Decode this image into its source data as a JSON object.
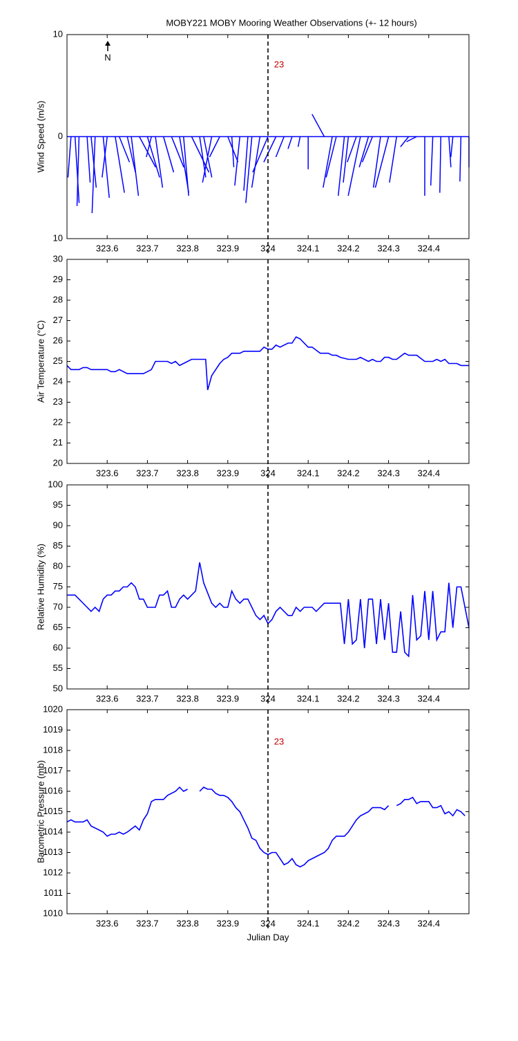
{
  "chart_data": [
    {
      "type": "quiver",
      "title": "MOBY221 MOBY Mooring Weather Observations (+- 12 hours)",
      "ylabel": "Wind Speed (m/s)",
      "x": [
        323.51,
        323.52,
        323.53,
        323.55,
        323.56,
        323.57,
        323.59,
        323.6,
        323.62,
        323.63,
        323.65,
        323.66,
        323.68,
        323.7,
        323.71,
        323.72,
        323.74,
        323.76,
        323.78,
        323.79,
        323.81,
        323.83,
        323.84,
        323.86,
        323.88,
        323.9,
        323.91,
        323.93,
        323.95,
        323.96,
        323.98,
        324.0,
        324.02,
        324.04,
        324.06,
        324.08,
        324.1,
        324.14,
        324.16,
        324.17,
        324.19,
        324.2,
        324.22,
        324.23,
        324.25,
        324.26,
        324.28,
        324.3,
        324.32,
        324.35,
        324.37,
        324.39,
        324.41,
        324.43,
        324.45,
        324.46,
        324.48,
        324.5
      ],
      "u": [
        -0.3,
        0.4,
        -0.2,
        0.3,
        0.5,
        -0.3,
        0.6,
        -0.5,
        0.9,
        1.0,
        0.8,
        0.7,
        1.6,
        1.2,
        -0.5,
        0.7,
        1.0,
        1.2,
        0.9,
        0.5,
        1.7,
        0.6,
        0.8,
        -0.9,
        -1.0,
        1.0,
        0.2,
        -0.5,
        -0.4,
        -0.6,
        -0.8,
        -1.5,
        -1.2,
        -0.8,
        -0.4,
        -0.2,
        0,
        -1.2,
        -0.9,
        -1.0,
        -0.6,
        -0.5,
        -0.9,
        -1.2,
        -0.9,
        -1.0,
        -0.7,
        -1.3,
        -0.7,
        -0.8,
        -1.0,
        0,
        -0.2,
        -0.1,
        0.2,
        -0.2,
        -0.1,
        0
      ],
      "v": [
        -4,
        -6.5,
        -6.8,
        -4.5,
        -5.0,
        -7.5,
        -6.0,
        -4.0,
        -5.5,
        -2.5,
        -3.5,
        -5.8,
        -3.0,
        -4.0,
        -2.0,
        -5.0,
        -3.5,
        -3.0,
        -5.5,
        -5.8,
        -3.5,
        -4.0,
        -4.0,
        -4.5,
        -2.0,
        -2.5,
        -3.0,
        -4.8,
        -5.3,
        -6.5,
        -5.0,
        -3.5,
        -2.5,
        -2.0,
        -1.2,
        -1.0,
        -3.2,
        2.2,
        -5.0,
        -4.0,
        -5.8,
        -4.5,
        -2.5,
        -5.8,
        -3.0,
        -2.5,
        -5.0,
        -5.0,
        -4.5,
        -1.0,
        -0.5,
        -5.8,
        -4.8,
        -5.5,
        -3.0,
        -2.0,
        -4.4,
        -3.0
      ],
      "color": "#0000ff",
      "xlim": [
        323.5,
        324.5
      ],
      "xticks": [
        323.6,
        323.7,
        323.8,
        323.9,
        324,
        324.1,
        324.2,
        324.3,
        324.4
      ],
      "ylim": [
        -10,
        10
      ],
      "yticks": [
        {
          "value": -10,
          "label": "10"
        },
        0,
        10
      ],
      "vline": 324,
      "annotation": {
        "text": "23",
        "x": 324.015,
        "y": 7,
        "color": "#c00000"
      },
      "north_label": "N"
    },
    {
      "type": "line",
      "ylabel": "Air Temperature (°C)",
      "x": [
        323.5,
        323.51,
        323.53,
        323.54,
        323.55,
        323.56,
        323.6,
        323.61,
        323.62,
        323.63,
        323.65,
        323.69,
        323.7,
        323.71,
        323.72,
        323.75,
        323.76,
        323.77,
        323.78,
        323.8,
        323.81,
        323.845,
        323.85,
        323.86,
        323.88,
        323.89,
        323.9,
        323.91,
        323.93,
        323.94,
        323.98,
        323.99,
        324.0,
        324.01,
        324.02,
        324.03,
        324.05,
        324.06,
        324.07,
        324.08,
        324.1,
        324.11,
        324.13,
        324.15,
        324.16,
        324.17,
        324.18,
        324.2,
        324.22,
        324.23,
        324.25,
        324.26,
        324.27,
        324.28,
        324.29,
        324.3,
        324.31,
        324.32,
        324.34,
        324.35,
        324.37,
        324.39,
        324.41,
        324.42,
        324.43,
        324.44,
        324.45,
        324.47,
        324.48,
        324.5
      ],
      "values": [
        24.8,
        24.6,
        24.6,
        24.7,
        24.7,
        24.6,
        24.6,
        24.5,
        24.5,
        24.6,
        24.4,
        24.4,
        24.5,
        24.6,
        25.0,
        25.0,
        24.9,
        25.0,
        24.8,
        25.0,
        25.1,
        25.1,
        23.6,
        24.3,
        24.9,
        25.1,
        25.2,
        25.4,
        25.4,
        25.5,
        25.5,
        25.7,
        25.6,
        25.6,
        25.8,
        25.7,
        25.9,
        25.9,
        26.2,
        26.1,
        25.7,
        25.7,
        25.4,
        25.4,
        25.3,
        25.3,
        25.2,
        25.1,
        25.1,
        25.2,
        25.0,
        25.1,
        25.0,
        25.0,
        25.2,
        25.2,
        25.1,
        25.1,
        25.4,
        25.3,
        25.3,
        25.0,
        25.0,
        25.1,
        25.0,
        25.1,
        24.9,
        24.9,
        24.8,
        24.8
      ],
      "color": "#0000ff",
      "xlim": [
        323.5,
        324.5
      ],
      "xticks": [
        323.6,
        323.7,
        323.8,
        323.9,
        324,
        324.1,
        324.2,
        324.3,
        324.4
      ],
      "ylim": [
        20,
        30
      ],
      "yticks": [
        20,
        21,
        22,
        23,
        24,
        25,
        26,
        27,
        28,
        29,
        30
      ],
      "vline": 324
    },
    {
      "type": "line",
      "ylabel": "Relative Humidity (%)",
      "x": [
        323.5,
        323.52,
        323.53,
        323.55,
        323.56,
        323.57,
        323.58,
        323.59,
        323.6,
        323.61,
        323.62,
        323.63,
        323.64,
        323.65,
        323.66,
        323.67,
        323.68,
        323.69,
        323.7,
        323.72,
        323.73,
        323.74,
        323.75,
        323.76,
        323.77,
        323.78,
        323.79,
        323.8,
        323.82,
        323.83,
        323.84,
        323.86,
        323.87,
        323.88,
        323.89,
        323.9,
        323.91,
        323.92,
        323.93,
        323.94,
        323.95,
        323.97,
        323.98,
        323.99,
        324.0,
        324.01,
        324.02,
        324.03,
        324.05,
        324.06,
        324.07,
        324.08,
        324.09,
        324.11,
        324.12,
        324.14,
        324.15,
        324.18,
        324.19,
        324.2,
        324.21,
        324.22,
        324.23,
        324.24,
        324.25,
        324.26,
        324.27,
        324.28,
        324.29,
        324.3,
        324.31,
        324.32,
        324.33,
        324.34,
        324.35,
        324.36,
        324.37,
        324.38,
        324.39,
        324.4,
        324.41,
        324.42,
        324.43,
        324.44,
        324.45,
        324.46,
        324.47,
        324.48,
        324.5
      ],
      "values": [
        73,
        73,
        72,
        70,
        69,
        70,
        69,
        72,
        73,
        73,
        74,
        74,
        75,
        75,
        76,
        75,
        72,
        72,
        70,
        70,
        73,
        73,
        74,
        70,
        70,
        72,
        73,
        72,
        74,
        81,
        76,
        71,
        70,
        71,
        70,
        70,
        74,
        72,
        71,
        72,
        72,
        68,
        67,
        68,
        66,
        67,
        69,
        70,
        68,
        68,
        70,
        69,
        70,
        70,
        69,
        71,
        71,
        71,
        61,
        72,
        61,
        62,
        72,
        60,
        72,
        72,
        61,
        72,
        62,
        71,
        59,
        59,
        69,
        59,
        58,
        73,
        62,
        63,
        74,
        62,
        74,
        62,
        64,
        64,
        76,
        65,
        75,
        75,
        65
      ],
      "color": "#0000ff",
      "xlim": [
        323.5,
        324.5
      ],
      "xticks": [
        323.6,
        323.7,
        323.8,
        323.9,
        324,
        324.1,
        324.2,
        324.3,
        324.4
      ],
      "ylim": [
        50,
        100
      ],
      "yticks": [
        50,
        55,
        60,
        65,
        70,
        75,
        80,
        85,
        90,
        95,
        100
      ],
      "vline": 324
    },
    {
      "type": "line",
      "ylabel": "Barometric Pressure (mb)",
      "xlabel": "Julian Day",
      "x": [
        323.5,
        323.51,
        323.52,
        323.54,
        323.55,
        323.56,
        323.58,
        323.59,
        323.6,
        323.61,
        323.62,
        323.63,
        323.64,
        323.65,
        323.67,
        323.68,
        323.69,
        323.7,
        323.71,
        323.72,
        323.74,
        323.75,
        323.77,
        323.78,
        323.79,
        323.8,
        323.81,
        323.83,
        323.84,
        323.85,
        323.86,
        323.87,
        323.88,
        323.89,
        323.9,
        323.91,
        323.92,
        323.93,
        323.94,
        323.95,
        323.96,
        323.97,
        323.98,
        323.99,
        324.0,
        324.01,
        324.02,
        324.03,
        324.04,
        324.05,
        324.06,
        324.07,
        324.08,
        324.09,
        324.1,
        324.12,
        324.14,
        324.15,
        324.16,
        324.17,
        324.19,
        324.2,
        324.21,
        324.22,
        324.23,
        324.24,
        324.25,
        324.26,
        324.28,
        324.29,
        324.3,
        324.31,
        324.32,
        324.33,
        324.34,
        324.35,
        324.36,
        324.37,
        324.38,
        324.4,
        324.41,
        324.42,
        324.43,
        324.44,
        324.45,
        324.46,
        324.47,
        324.48,
        324.49
      ],
      "values": [
        1014.5,
        1014.6,
        1014.5,
        1014.5,
        1014.6,
        1014.3,
        1014.1,
        1014.0,
        1013.8,
        1013.9,
        1013.9,
        1014.0,
        1013.9,
        1014.0,
        1014.3,
        1014.1,
        1014.6,
        1014.9,
        1015.5,
        1015.6,
        1015.6,
        1015.8,
        1016.0,
        1016.2,
        1016.0,
        1016.1,
        null,
        1016.0,
        1016.2,
        1016.1,
        1016.1,
        1015.9,
        1015.8,
        1015.8,
        1015.7,
        1015.5,
        1015.2,
        1015.0,
        1014.6,
        1014.2,
        1013.7,
        1013.6,
        1013.2,
        1013.0,
        1012.9,
        1013.0,
        1013.0,
        1012.7,
        1012.4,
        1012.5,
        1012.7,
        1012.4,
        1012.3,
        1012.4,
        1012.6,
        1012.8,
        1013.0,
        1013.2,
        1013.6,
        1013.8,
        1013.8,
        1014.0,
        1014.3,
        1014.6,
        1014.8,
        1014.9,
        1015.0,
        1015.2,
        1015.2,
        1015.1,
        1015.3,
        null,
        1015.3,
        1015.4,
        1015.6,
        1015.6,
        1015.7,
        1015.4,
        1015.5,
        1015.5,
        1015.2,
        1015.2,
        1015.3,
        1014.9,
        1015.0,
        1014.8,
        1015.1,
        1015.0,
        1014.8
      ],
      "color": "#0000ff",
      "xlim": [
        323.5,
        324.5
      ],
      "xticks": [
        323.6,
        323.7,
        323.8,
        323.9,
        324,
        324.1,
        324.2,
        324.3,
        324.4
      ],
      "ylim": [
        1010,
        1020
      ],
      "yticks": [
        1010,
        1011,
        1012,
        1013,
        1014,
        1015,
        1016,
        1017,
        1018,
        1019,
        1020
      ],
      "vline": 324,
      "annotation": {
        "text": "23",
        "x": 324.015,
        "y": 1018.4,
        "color": "#c00000"
      }
    }
  ]
}
